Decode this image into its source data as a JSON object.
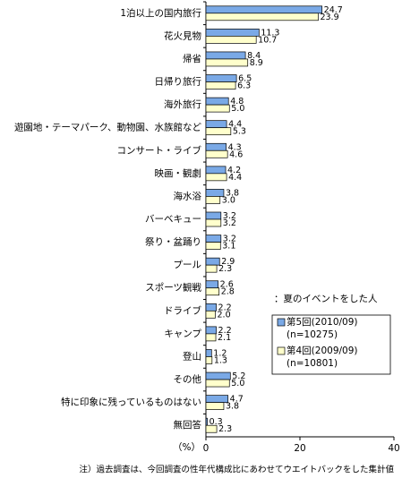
{
  "chart_data": {
    "type": "hbar",
    "categories": [
      "1泊以上の国内旅行",
      "花火見物",
      "帰省",
      "日帰り旅行",
      "海外旅行",
      "遊園地・テーマパーク、動物園、水族館など",
      "コンサート・ライブ",
      "映画・観劇",
      "海水浴",
      "バーベキュー",
      "祭り・盆踊り",
      "プール",
      "スポーツ観戦",
      "ドライブ",
      "キャンプ",
      "登山",
      "その他",
      "特に印象に残っているものはない",
      "無回答"
    ],
    "series": [
      {
        "name": "第5回(2010/09)",
        "n": "(n=10275)",
        "color": "#7aa9e6",
        "values": [
          24.7,
          11.3,
          8.4,
          6.5,
          4.8,
          4.4,
          4.3,
          4.2,
          3.8,
          3.2,
          3.2,
          2.9,
          2.6,
          2.2,
          2.2,
          1.2,
          5.2,
          4.7,
          0.3
        ],
        "value_labels": [
          "24.7",
          "11.3",
          "8.4",
          "6.5",
          "4.8",
          "4.4",
          "4.3",
          "4.2",
          "3.8",
          "3.2",
          "3.2",
          "2.9",
          "2.6",
          "2.2",
          "2.2",
          "1.2",
          "5.2",
          "4.7",
          "0.3"
        ]
      },
      {
        "name": "第4回(2009/09)",
        "n": "(n=10801)",
        "color": "#ffffcc",
        "values": [
          23.9,
          10.7,
          8.9,
          6.3,
          5.0,
          5.3,
          4.6,
          4.4,
          3.0,
          3.2,
          3.1,
          2.3,
          2.8,
          2.0,
          2.1,
          1.3,
          5.0,
          3.8,
          2.3
        ],
        "value_labels": [
          "23.9",
          "10.7",
          "8.9",
          "6.3",
          "5.0",
          "5.3",
          "4.6",
          "4.4",
          "3.0",
          "3.2",
          "3.1",
          "2.3",
          "2.8",
          "2.0",
          "2.1",
          "1.3",
          "5.0",
          "3.8",
          "2.3"
        ]
      }
    ],
    "xlim": [
      0,
      40
    ],
    "xticks": [
      0,
      20,
      40
    ],
    "x_label": "（%）",
    "legend_title": "：夏のイベントをした人",
    "note": "注）過去調査は、今回調査の性年代構成比にあわせてウエイトバックをした集計値"
  }
}
